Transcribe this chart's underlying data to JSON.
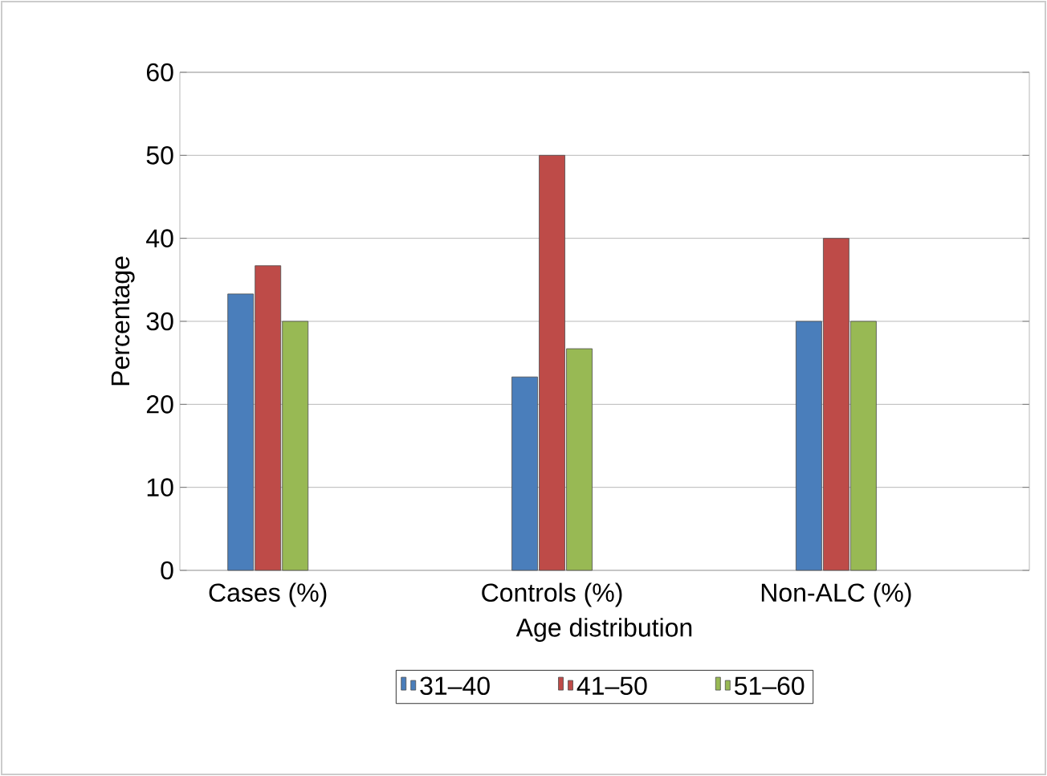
{
  "chart_data": {
    "type": "bar",
    "xlabel": "Age distribution",
    "ylabel": "Percentage",
    "categories": [
      "Cases (%)",
      "Controls (%)",
      "Non-ALC (%)"
    ],
    "series": [
      {
        "name": "31–40",
        "color": "#4a7ebb",
        "values": [
          33.3,
          23.3,
          30
        ]
      },
      {
        "name": "41–50",
        "color": "#be4b48",
        "values": [
          36.7,
          50,
          40
        ]
      },
      {
        "name": "51–60",
        "color": "#98b954",
        "values": [
          30,
          26.7,
          30
        ]
      }
    ],
    "ylim": [
      0,
      60
    ],
    "yticks": [
      0,
      10,
      20,
      30,
      40,
      50,
      60
    ],
    "grid": "y",
    "legend": "bottom"
  }
}
